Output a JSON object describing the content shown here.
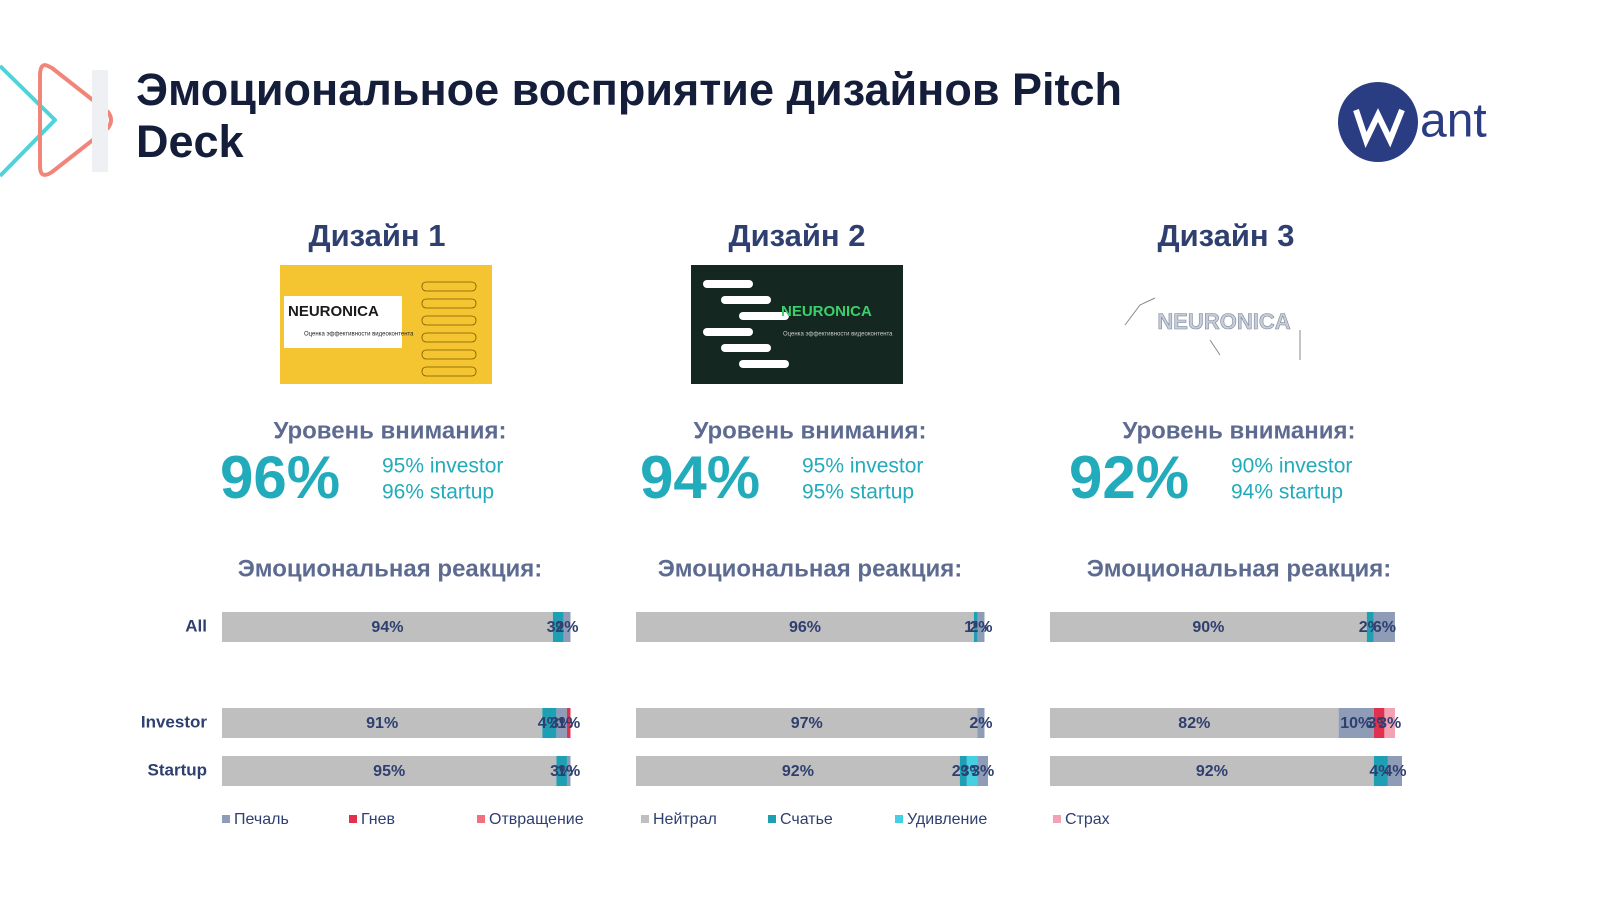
{
  "title": "Эмоциональное восприятие дизайнов Pitch Deck",
  "logo_text": "ant",
  "designs": [
    {
      "name": "Дизайн 1",
      "thumbnail_title": "NEURONICA",
      "thumbnail_subtitle": "Оценка эффективности видеоконтента",
      "attention_label": "Уровень внимания:",
      "attention": "96%",
      "investor": "95% investor",
      "startup": "96% startup",
      "reaction_label": "Эмоциональная реакция:"
    },
    {
      "name": "Дизайн 2",
      "thumbnail_title": "NEURONICA",
      "thumbnail_subtitle": "Оценка эффективности видеоконтента",
      "attention_label": "Уровень внимания:",
      "attention": "94%",
      "investor": "95% investor",
      "startup": "95% startup",
      "reaction_label": "Эмоциональная реакция:"
    },
    {
      "name": "Дизайн 3",
      "thumbnail_title": "NEURONICA",
      "attention_label": "Уровень внимания:",
      "attention": "92%",
      "investor": "90% investor",
      "startup": "94% startup",
      "reaction_label": "Эмоциональная реакция:"
    }
  ],
  "chart_data": [
    {
      "type": "stacked_barh",
      "categories": [
        "All",
        "Investor",
        "Startup"
      ],
      "xlim": [
        0,
        100
      ],
      "series": [
        {
          "name": "Печаль",
          "color": "#8f9cb8",
          "values": [
            2,
            3,
            1
          ],
          "value_labels": [
            "2%",
            "3%",
            "1%"
          ]
        },
        {
          "name": "Гнев",
          "color": "#e0314f",
          "values": [
            0,
            1,
            0
          ],
          "value_labels": [
            null,
            "1%",
            null
          ]
        },
        {
          "name": "Отвращение",
          "color": "#f0707e",
          "values": [
            0,
            0,
            0
          ],
          "value_labels": [
            null,
            null,
            null
          ]
        },
        {
          "name": "Нейтрал",
          "color": "#bfbfbf",
          "values": [
            94,
            91,
            95
          ],
          "value_labels": [
            "94%",
            "91%",
            "95%"
          ]
        },
        {
          "name": "Счатье",
          "color": "#1f9fb3",
          "values": [
            3,
            4,
            3
          ],
          "value_labels": [
            "3%",
            "4%",
            "3%"
          ]
        },
        {
          "name": "Удивление",
          "color": "#44d0e2",
          "values": [
            0,
            0,
            0
          ],
          "value_labels": [
            null,
            null,
            null
          ]
        },
        {
          "name": "Страх",
          "color": "#f3a2b3",
          "values": [
            0,
            0,
            0
          ],
          "value_labels": [
            null,
            null,
            null
          ]
        }
      ]
    },
    {
      "type": "stacked_barh",
      "categories": [
        null,
        null,
        null
      ],
      "xlim": [
        0,
        100
      ],
      "series": [
        {
          "name": "Печаль",
          "color": "#8f9cb8",
          "values": [
            2,
            2,
            3
          ],
          "value_labels": [
            "2%",
            "2%",
            "3%"
          ]
        },
        {
          "name": "Гнев",
          "color": "#e0314f",
          "values": [
            0,
            0,
            0
          ],
          "value_labels": [
            null,
            null,
            null
          ]
        },
        {
          "name": "Отвращение",
          "color": "#f0707e",
          "values": [
            0,
            0,
            0
          ],
          "value_labels": [
            null,
            null,
            null
          ]
        },
        {
          "name": "Нейтрал",
          "color": "#bfbfbf",
          "values": [
            96,
            97,
            92
          ],
          "value_labels": [
            "96%",
            "97%",
            "92%"
          ]
        },
        {
          "name": "Счатье",
          "color": "#1f9fb3",
          "values": [
            1,
            0,
            2
          ],
          "value_labels": [
            "1%",
            null,
            "2%"
          ]
        },
        {
          "name": "Удивление",
          "color": "#44d0e2",
          "values": [
            0,
            0,
            3
          ],
          "value_labels": [
            null,
            null,
            "3%"
          ]
        },
        {
          "name": "Страх",
          "color": "#f3a2b3",
          "values": [
            0,
            0,
            0
          ],
          "value_labels": [
            null,
            null,
            null
          ]
        }
      ]
    },
    {
      "type": "stacked_barh",
      "categories": [
        null,
        null,
        null
      ],
      "xlim": [
        0,
        100
      ],
      "series": [
        {
          "name": "Печаль",
          "color": "#8f9cb8",
          "values": [
            6,
            10,
            4
          ],
          "value_labels": [
            "6%",
            "10%",
            "4%"
          ]
        },
        {
          "name": "Гнев",
          "color": "#e0314f",
          "values": [
            0,
            3,
            0
          ],
          "value_labels": [
            null,
            "3%",
            null
          ]
        },
        {
          "name": "Отвращение",
          "color": "#f0707e",
          "values": [
            0,
            0,
            0
          ],
          "value_labels": [
            null,
            null,
            null
          ]
        },
        {
          "name": "Нейтрал",
          "color": "#bfbfbf",
          "values": [
            90,
            82,
            92
          ],
          "value_labels": [
            "90%",
            "82%",
            "92%"
          ]
        },
        {
          "name": "Счатье",
          "color": "#1f9fb3",
          "values": [
            2,
            0,
            4
          ],
          "value_labels": [
            "2%",
            null,
            "4%"
          ]
        },
        {
          "name": "Удивление",
          "color": "#44d0e2",
          "values": [
            0,
            0,
            0
          ],
          "value_labels": [
            null,
            null,
            null
          ]
        },
        {
          "name": "Страх",
          "color": "#f3a2b3",
          "values": [
            0,
            3,
            0
          ],
          "value_labels": [
            null,
            "3%",
            null
          ]
        }
      ]
    }
  ]
}
